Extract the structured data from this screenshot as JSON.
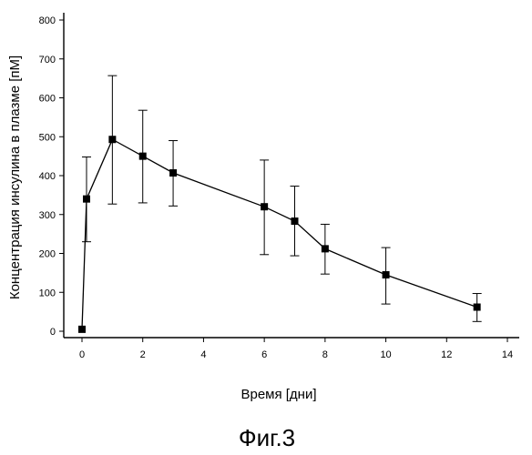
{
  "chart_data": {
    "type": "line",
    "xlabel": "Время [дни]",
    "ylabel": "Концентрация инсулина в плазме [пМ]",
    "xlim": [
      0,
      14
    ],
    "ylim": [
      0,
      800
    ],
    "x_ticks": [
      0,
      2,
      4,
      6,
      8,
      10,
      12,
      14
    ],
    "y_ticks": [
      0,
      100,
      200,
      300,
      400,
      500,
      600,
      700,
      800
    ],
    "y_tick_labels": [
      "0",
      "100",
      "200",
      "300",
      "400",
      "500",
      "600",
      "700",
      "800"
    ],
    "grid": false,
    "legend": "none",
    "series": [
      {
        "marker": "square",
        "color": "#000000",
        "points": [
          {
            "x": 0,
            "y": 5,
            "err_low": 5,
            "err_high": 5
          },
          {
            "x": 0.15,
            "y": 340,
            "err_low": 230,
            "err_high": 448
          },
          {
            "x": 1,
            "y": 493,
            "err_low": 327,
            "err_high": 657
          },
          {
            "x": 2,
            "y": 450,
            "err_low": 330,
            "err_high": 568
          },
          {
            "x": 3,
            "y": 407,
            "err_low": 322,
            "err_high": 490
          },
          {
            "x": 6,
            "y": 320,
            "err_low": 197,
            "err_high": 440
          },
          {
            "x": 7,
            "y": 283,
            "err_low": 194,
            "err_high": 373
          },
          {
            "x": 8,
            "y": 212,
            "err_low": 147,
            "err_high": 275
          },
          {
            "x": 10,
            "y": 145,
            "err_low": 70,
            "err_high": 215
          },
          {
            "x": 13,
            "y": 62,
            "err_low": 25,
            "err_high": 97
          }
        ]
      }
    ]
  },
  "caption": "Фиг.3"
}
